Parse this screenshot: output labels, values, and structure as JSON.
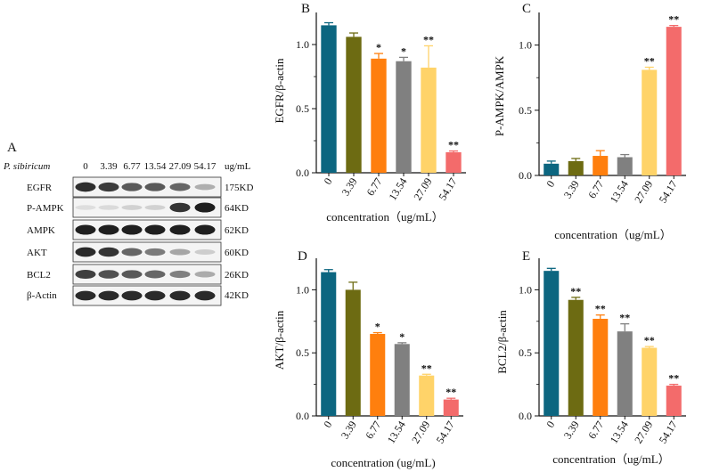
{
  "colors": [
    "#0c6680",
    "#6d6b12",
    "#ff7f0e",
    "#808080",
    "#ffd369",
    "#f36b6b"
  ],
  "panel_a": {
    "letter": "A",
    "species": "P. sibiricum",
    "unit": "ug/mL",
    "concentrations": [
      "0",
      "3.39",
      "6.77",
      "13.54",
      "27.09",
      "54.17"
    ],
    "proteins": [
      {
        "name": "EGFR",
        "weight": "175KD",
        "intensity": [
          0.88,
          0.82,
          0.68,
          0.68,
          0.62,
          0.28
        ]
      },
      {
        "name": "P-AMPK",
        "weight": "64KD",
        "intensity": [
          0.06,
          0.08,
          0.12,
          0.12,
          0.85,
          0.95
        ]
      },
      {
        "name": "AMPK",
        "weight": "62KD",
        "intensity": [
          0.95,
          0.95,
          0.95,
          0.95,
          0.95,
          0.95
        ]
      },
      {
        "name": "AKT",
        "weight": "60KD",
        "intensity": [
          0.9,
          0.85,
          0.62,
          0.52,
          0.32,
          0.14
        ]
      },
      {
        "name": "BCL2",
        "weight": "26KD",
        "intensity": [
          0.8,
          0.72,
          0.68,
          0.62,
          0.5,
          0.3
        ]
      },
      {
        "name": "β-Actin",
        "weight": "42KD",
        "intensity": [
          0.9,
          0.9,
          0.9,
          0.9,
          0.9,
          0.9
        ]
      }
    ]
  },
  "chart_data": [
    {
      "id": "B",
      "letter": "B",
      "type": "bar",
      "categories": [
        "0",
        "3.39",
        "6.77",
        "13.54",
        "27.09",
        "54.17"
      ],
      "values": [
        1.15,
        1.06,
        0.89,
        0.87,
        0.82,
        0.16
      ],
      "errors": [
        0.02,
        0.03,
        0.04,
        0.03,
        0.17,
        0.01
      ],
      "significance": [
        "",
        "",
        "*",
        "*",
        "**",
        "**"
      ],
      "ylabel": "EGFR/β-actin",
      "xlabel": "concentration（ug/mL）",
      "ylim": [
        0,
        1.25
      ],
      "yticks": [
        "0.0",
        "0.5",
        "1.0"
      ]
    },
    {
      "id": "C",
      "letter": "C",
      "type": "bar",
      "categories": [
        "0",
        "3.39",
        "6.77",
        "13.54",
        "27.09",
        "54.17"
      ],
      "values": [
        0.09,
        0.11,
        0.15,
        0.14,
        0.81,
        1.14
      ],
      "errors": [
        0.02,
        0.02,
        0.04,
        0.02,
        0.02,
        0.01
      ],
      "significance": [
        "",
        "",
        "",
        "",
        "**",
        "**"
      ],
      "ylabel": "P-AMPK/AMPK",
      "xlabel": "concentration（ug/mL）",
      "ylim": [
        0,
        1.25
      ],
      "yticks": [
        "0.0",
        "0.5",
        "1.0"
      ]
    },
    {
      "id": "D",
      "letter": "D",
      "type": "bar",
      "categories": [
        "0",
        "3.39",
        "6.77",
        "13.54",
        "27.09",
        "54.17"
      ],
      "values": [
        1.14,
        1.0,
        0.65,
        0.57,
        0.32,
        0.13
      ],
      "errors": [
        0.02,
        0.06,
        0.01,
        0.01,
        0.01,
        0.01
      ],
      "significance": [
        "",
        "",
        "*",
        "*",
        "**",
        "**"
      ],
      "ylabel": "AKT/β-actin",
      "xlabel": "concentration (ug/mL)",
      "ylim": [
        0,
        1.25
      ],
      "yticks": [
        "0.0",
        "0.5",
        "1.0"
      ]
    },
    {
      "id": "E",
      "letter": "E",
      "type": "bar",
      "categories": [
        "0",
        "3.39",
        "6.77",
        "13.54",
        "27.09",
        "54.17"
      ],
      "values": [
        1.15,
        0.92,
        0.77,
        0.67,
        0.54,
        0.24
      ],
      "errors": [
        0.02,
        0.02,
        0.03,
        0.06,
        0.01,
        0.01
      ],
      "significance": [
        "",
        "**",
        "**",
        "**",
        "**",
        "**"
      ],
      "ylabel": "BCL2/β-actin",
      "xlabel": "concentration（ug/mL）",
      "ylim": [
        0,
        1.25
      ],
      "yticks": [
        "0.0",
        "0.5",
        "1.0"
      ]
    }
  ]
}
